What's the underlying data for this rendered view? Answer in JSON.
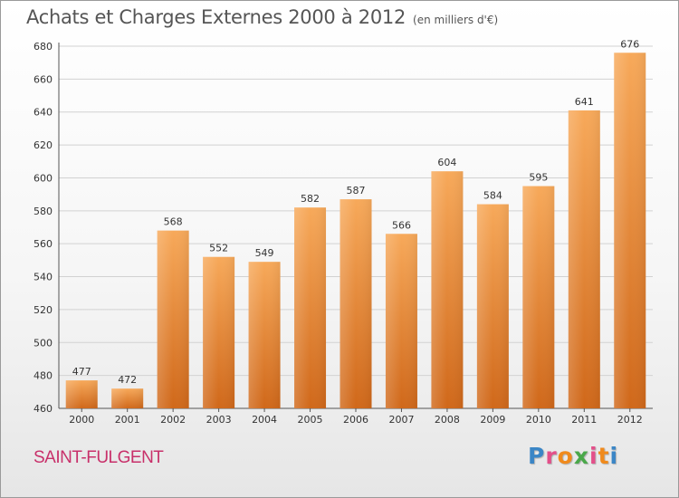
{
  "header": {
    "title": "Achats et Charges Externes 2000 à 2012",
    "unit": "(en milliers d'€)"
  },
  "footer": {
    "place": "SAINT-FULGENT",
    "logo": "Proxiti",
    "logo_colors": [
      "#3b86c6",
      "#e34f8a",
      "#f08a1c",
      "#4aa84a",
      "#e34f8a",
      "#f08a1c",
      "#3b86c6"
    ]
  },
  "colors": {
    "bar_top": "#f7a95a",
    "bar_bottom": "#d0681a",
    "grid": "#d2d2d2",
    "title": "#555555",
    "place": "#c8306a"
  },
  "chart_data": {
    "type": "bar",
    "title": "Achats et Charges Externes 2000 à 2012",
    "subtitle": "(en milliers d'€)",
    "categories": [
      "2000",
      "2001",
      "2002",
      "2003",
      "2004",
      "2005",
      "2006",
      "2007",
      "2008",
      "2009",
      "2010",
      "2011",
      "2012"
    ],
    "values": [
      477,
      472,
      568,
      552,
      549,
      582,
      587,
      566,
      604,
      584,
      595,
      641,
      676
    ],
    "ylim": [
      460,
      680
    ],
    "yticks": [
      460,
      480,
      500,
      520,
      540,
      560,
      580,
      600,
      620,
      640,
      660,
      680
    ],
    "grid": true,
    "data_labels": true
  }
}
